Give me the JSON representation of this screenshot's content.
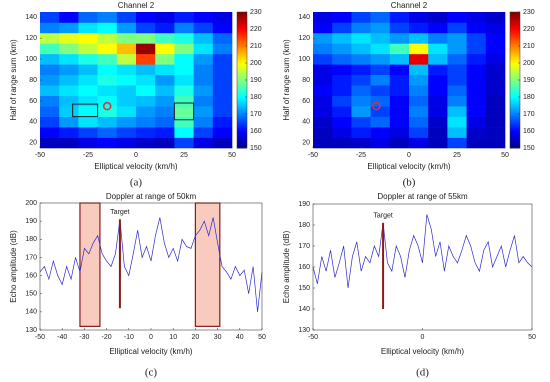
{
  "chart_data": [
    {
      "type": "heatmap",
      "title": "Channel 2",
      "xlabel": "Elliptical velocity (km/h)",
      "ylabel": "Half of range sum (km)",
      "caption": "(a)",
      "colormap": "jet",
      "x": [
        -45,
        -35,
        -25,
        -15,
        -5,
        5,
        15,
        25,
        35,
        45
      ],
      "y": [
        20,
        30,
        40,
        50,
        60,
        70,
        80,
        90,
        100,
        110,
        120,
        130,
        140
      ],
      "z": [
        [
          155,
          155,
          158,
          160,
          158,
          156,
          155,
          165,
          158,
          155
        ],
        [
          160,
          162,
          165,
          168,
          165,
          163,
          162,
          180,
          165,
          160
        ],
        [
          165,
          172,
          178,
          175,
          172,
          170,
          168,
          185,
          170,
          162
        ],
        [
          168,
          176,
          180,
          182,
          178,
          172,
          170,
          188,
          172,
          165
        ],
        [
          170,
          175,
          178,
          180,
          176,
          175,
          172,
          185,
          170,
          165
        ],
        [
          175,
          178,
          180,
          178,
          176,
          180,
          175,
          182,
          172,
          165
        ],
        [
          172,
          175,
          178,
          182,
          180,
          178,
          172,
          178,
          170,
          165
        ],
        [
          170,
          172,
          175,
          180,
          178,
          175,
          178,
          180,
          170,
          165
        ],
        [
          175,
          178,
          182,
          185,
          195,
          215,
          190,
          180,
          172,
          165
        ],
        [
          185,
          190,
          195,
          200,
          205,
          228,
          200,
          190,
          178,
          170
        ],
        [
          195,
          198,
          200,
          195,
          190,
          190,
          185,
          182,
          175,
          168
        ],
        [
          170,
          172,
          178,
          180,
          172,
          165,
          162,
          170,
          165,
          160
        ],
        [
          165,
          160,
          168,
          170,
          165,
          160,
          158,
          162,
          160,
          158
        ]
      ],
      "xlim": [
        -50,
        50
      ],
      "xticks": [
        -50,
        -25,
        0,
        25,
        50
      ],
      "ylim": [
        15,
        145
      ],
      "yticks": [
        20,
        40,
        60,
        80,
        100,
        120,
        140
      ],
      "zlim": [
        150,
        230
      ],
      "zticks": [
        150,
        160,
        170,
        180,
        190,
        200,
        210,
        220,
        230
      ],
      "markers": [
        {
          "x": -15,
          "y": 55,
          "color": "#e03030"
        }
      ],
      "boxes": [
        {
          "x": [
            -33,
            -20
          ],
          "y": [
            45,
            57
          ],
          "color": "#202020"
        },
        {
          "x": [
            20,
            30
          ],
          "y": [
            42,
            58
          ],
          "color": "#202020"
        }
      ]
    },
    {
      "type": "heatmap",
      "title": "Channel 2",
      "xlabel": "Elliptical velocity (km/h)",
      "ylabel": "Half of range sum (km)",
      "caption": "(b)",
      "colormap": "jet",
      "x": [
        -45,
        -35,
        -25,
        -15,
        -5,
        5,
        15,
        25,
        35,
        45
      ],
      "y": [
        20,
        30,
        40,
        50,
        60,
        70,
        80,
        90,
        100,
        110,
        120,
        130,
        140
      ],
      "z": [
        [
          155,
          155,
          156,
          158,
          155,
          158,
          155,
          165,
          155,
          155
        ],
        [
          155,
          158,
          162,
          160,
          158,
          165,
          155,
          175,
          156,
          155
        ],
        [
          156,
          160,
          165,
          168,
          160,
          168,
          156,
          178,
          158,
          155
        ],
        [
          158,
          162,
          172,
          165,
          160,
          170,
          158,
          175,
          160,
          155
        ],
        [
          158,
          165,
          170,
          168,
          160,
          168,
          158,
          170,
          160,
          155
        ],
        [
          160,
          162,
          168,
          165,
          162,
          170,
          160,
          168,
          160,
          156
        ],
        [
          158,
          162,
          165,
          170,
          162,
          172,
          160,
          165,
          160,
          156
        ],
        [
          158,
          160,
          162,
          165,
          160,
          175,
          162,
          165,
          160,
          156
        ],
        [
          165,
          168,
          170,
          172,
          175,
          222,
          175,
          168,
          162,
          158
        ],
        [
          170,
          172,
          175,
          178,
          185,
          200,
          178,
          172,
          165,
          160
        ],
        [
          172,
          175,
          178,
          175,
          172,
          175,
          170,
          172,
          165,
          160
        ],
        [
          160,
          165,
          170,
          172,
          165,
          162,
          160,
          165,
          160,
          158
        ],
        [
          158,
          160,
          165,
          168,
          162,
          158,
          156,
          160,
          158,
          156
        ]
      ],
      "xlim": [
        -50,
        50
      ],
      "xticks": [
        -50,
        -25,
        0,
        25,
        50
      ],
      "ylim": [
        15,
        145
      ],
      "yticks": [
        20,
        40,
        60,
        80,
        100,
        120,
        140
      ],
      "zlim": [
        150,
        230
      ],
      "zticks": [
        150,
        160,
        170,
        180,
        190,
        200,
        210,
        220,
        230
      ],
      "markers": [
        {
          "x": -17,
          "y": 55,
          "color": "#e03030"
        }
      ],
      "boxes": []
    },
    {
      "type": "line",
      "title": "Doppler at range of 50km",
      "xlabel": "Elliptical velocity (km/h)",
      "ylabel": "Echo amplitude (dB)",
      "caption": "(c)",
      "x": [
        -50,
        -48,
        -46,
        -44,
        -42,
        -40,
        -38,
        -36,
        -34,
        -32,
        -30,
        -28,
        -26,
        -24,
        -22,
        -20,
        -18,
        -16,
        -14,
        -12,
        -10,
        -8,
        -6,
        -4,
        -2,
        0,
        2,
        4,
        6,
        8,
        10,
        12,
        14,
        16,
        18,
        20,
        22,
        24,
        26,
        28,
        30,
        32,
        34,
        36,
        38,
        40,
        42,
        44,
        46,
        48,
        50
      ],
      "series": [
        {
          "color": "#2b2bd0",
          "values": [
            162,
            165,
            158,
            168,
            160,
            155,
            165,
            158,
            170,
            162,
            175,
            172,
            178,
            182,
            172,
            168,
            165,
            172,
            191,
            165,
            160,
            172,
            185,
            170,
            176,
            168,
            182,
            192,
            178,
            170,
            175,
            168,
            180,
            176,
            175,
            182,
            185,
            190,
            182,
            192,
            178,
            165,
            162,
            158,
            165,
            160,
            163,
            150,
            165,
            140,
            162
          ]
        }
      ],
      "xlim": [
        -50,
        50
      ],
      "xticks": [
        -50,
        -40,
        -30,
        -20,
        -10,
        0,
        10,
        20,
        30,
        40,
        50
      ],
      "ylim": [
        130,
        200
      ],
      "yticks": [
        130,
        140,
        150,
        160,
        170,
        180,
        190,
        200
      ],
      "target": {
        "label": "Target",
        "x": -14,
        "y": [
          142,
          191
        ],
        "color": "#8b1a1a"
      },
      "highlights": [
        {
          "x": [
            -32,
            -23
          ],
          "y": [
            132,
            200
          ]
        },
        {
          "x": [
            20,
            31
          ],
          "y": [
            132,
            200
          ]
        }
      ]
    },
    {
      "type": "line",
      "title": "Doppler at range of 55km",
      "xlabel": "Elliptical velocity (km/h)",
      "ylabel": "Echo amplitude (dB)",
      "caption": "(d)",
      "x": [
        -50,
        -48,
        -46,
        -44,
        -42,
        -40,
        -38,
        -36,
        -34,
        -32,
        -30,
        -28,
        -26,
        -24,
        -22,
        -20,
        -18,
        -16,
        -14,
        -12,
        -10,
        -8,
        -6,
        -4,
        -2,
        0,
        2,
        4,
        6,
        8,
        10,
        12,
        14,
        16,
        18,
        20,
        22,
        24,
        26,
        28,
        30,
        32,
        34,
        36,
        38,
        40,
        42,
        44,
        46,
        48,
        50
      ],
      "series": [
        {
          "color": "#2b2bd0",
          "values": [
            160,
            152,
            165,
            158,
            168,
            155,
            162,
            170,
            150,
            165,
            172,
            158,
            165,
            162,
            170,
            165,
            181,
            162,
            158,
            170,
            165,
            155,
            168,
            175,
            170,
            162,
            185,
            178,
            165,
            172,
            158,
            170,
            165,
            162,
            168,
            175,
            170,
            162,
            158,
            168,
            172,
            160,
            165,
            170,
            160,
            168,
            175,
            162,
            165,
            162,
            160
          ]
        }
      ],
      "xlim": [
        -50,
        50
      ],
      "xticks": [
        -50,
        0,
        50
      ],
      "ylim": [
        130,
        190
      ],
      "yticks": [
        130,
        140,
        150,
        160,
        170,
        180,
        190
      ],
      "target": {
        "label": "Target",
        "x": -18,
        "y": [
          140,
          181
        ],
        "color": "#8b1a1a"
      },
      "highlights": []
    }
  ]
}
